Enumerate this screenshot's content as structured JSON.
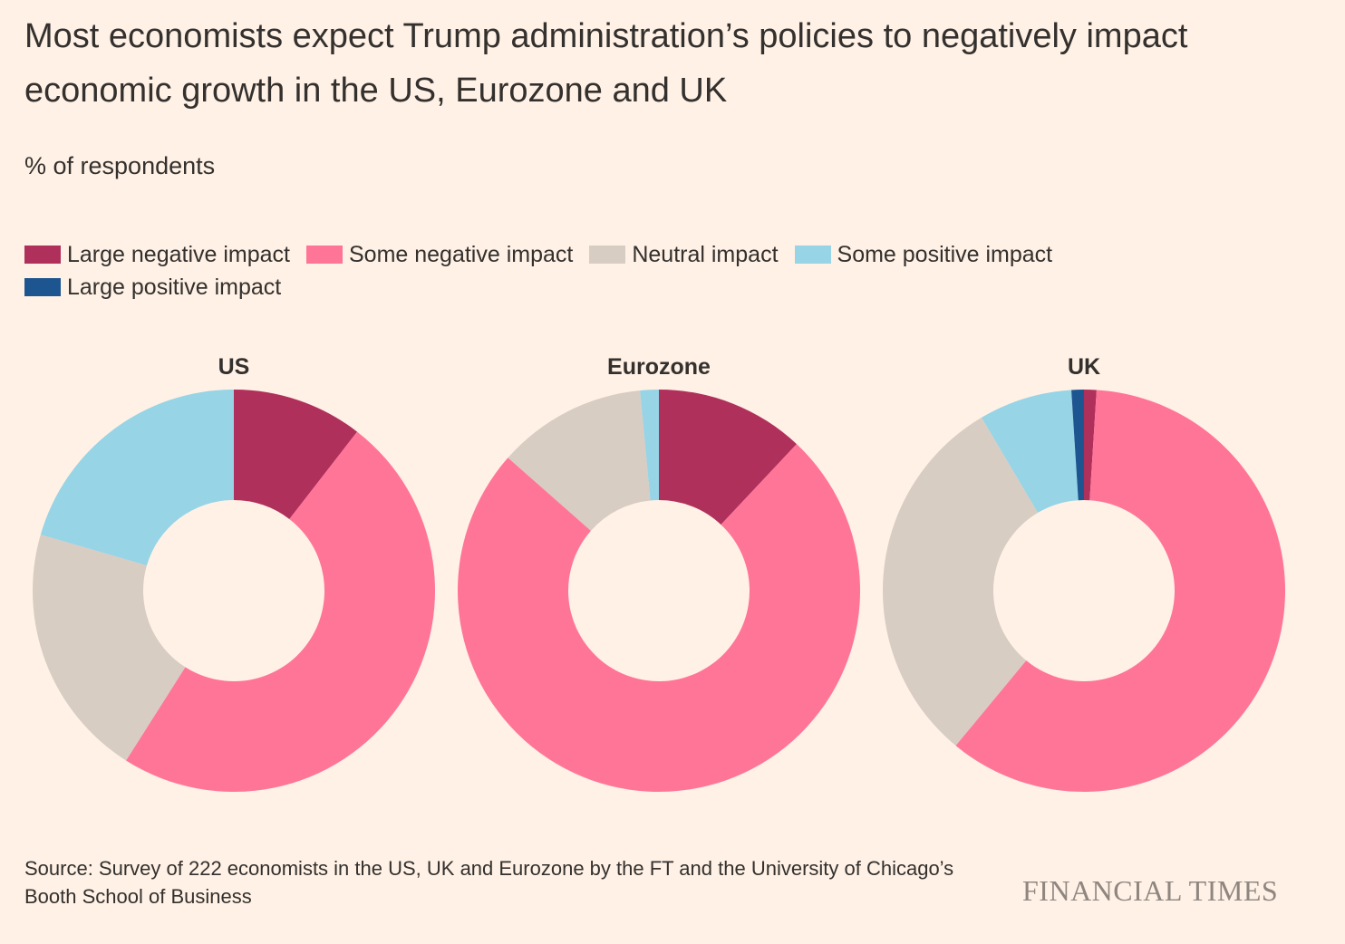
{
  "title": "Most economists expect Trump administration’s policies to negatively impact economic growth in the US, Eurozone and UK",
  "subtitle": "% of respondents",
  "source": "Source: Survey of 222 economists in the US, UK and Eurozone by the FT and the University of Chicago’s Booth School of Business",
  "brand": "FINANCIAL TIMES",
  "legend": [
    {
      "label": "Large negative impact",
      "color": "#b0305c"
    },
    {
      "label": "Some negative impact",
      "color": "#ff7598"
    },
    {
      "label": "Neutral impact",
      "color": "#d8cdc3"
    },
    {
      "label": "Some positive impact",
      "color": "#96d4e6"
    },
    {
      "label": "Large positive impact",
      "color": "#1d5590"
    }
  ],
  "chart_data": [
    {
      "type": "pie",
      "title": "US",
      "categories": [
        "Large negative impact",
        "Some negative impact",
        "Neutral impact",
        "Some positive impact",
        "Large positive impact"
      ],
      "values": [
        10.5,
        48.5,
        20.5,
        20.5,
        0
      ],
      "unit": "%"
    },
    {
      "type": "pie",
      "title": "Eurozone",
      "categories": [
        "Large negative impact",
        "Some negative impact",
        "Neutral impact",
        "Some positive impact",
        "Large positive impact"
      ],
      "values": [
        12,
        74.5,
        12,
        1.5,
        0
      ],
      "unit": "%"
    },
    {
      "type": "pie",
      "title": "UK",
      "categories": [
        "Large negative impact",
        "Some negative impact",
        "Neutral impact",
        "Some positive impact",
        "Large positive impact"
      ],
      "values": [
        1,
        60,
        30.5,
        7.5,
        1
      ],
      "unit": "%"
    }
  ]
}
